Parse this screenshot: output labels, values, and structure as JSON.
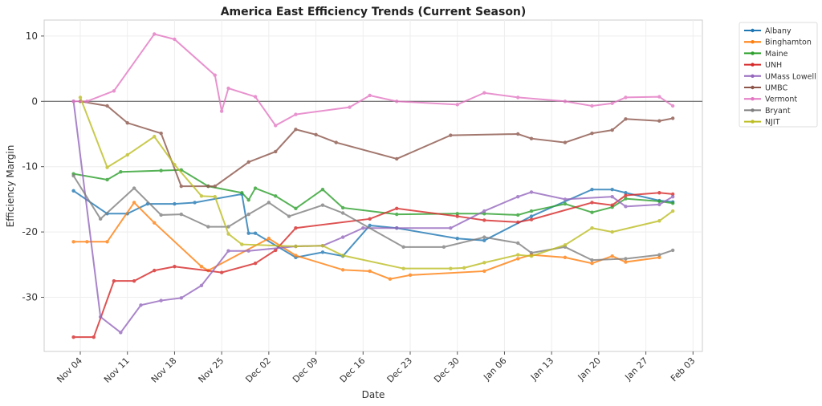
{
  "chart_data": {
    "type": "line",
    "title": "America East Efficiency Trends (Current Season)",
    "xlabel": "Date",
    "ylabel": "Efficiency Margin",
    "xlim": [
      "Nov 02",
      "Feb 03"
    ],
    "ylim": [
      -38.3,
      12.4
    ],
    "x_ticks": [
      "Nov 04",
      "Nov 11",
      "Nov 18",
      "Nov 25",
      "Dec 02",
      "Dec 09",
      "Dec 16",
      "Dec 23",
      "Dec 30",
      "Jan 06",
      "Jan 13",
      "Jan 20",
      "Jan 27",
      "Feb 03"
    ],
    "y_ticks": [
      10,
      0,
      -10,
      -20,
      -30
    ],
    "grid": true,
    "reference_line": 0,
    "legend_placement": "outside-right-top",
    "series": [
      {
        "name": "Albany",
        "color": "#1f77b4",
        "points": [
          [
            "Nov 03",
            -13.7
          ],
          [
            "Nov 08",
            -17.2
          ],
          [
            "Nov 11",
            -17.2
          ],
          [
            "Nov 14",
            -15.7
          ],
          [
            "Nov 18",
            -15.7
          ],
          [
            "Nov 21",
            -15.5
          ],
          [
            "Nov 28",
            -14.2
          ],
          [
            "Nov 29",
            -20.2
          ],
          [
            "Nov 30",
            -20.2
          ],
          [
            "Dec 06",
            -23.9
          ],
          [
            "Dec 10",
            -23.1
          ],
          [
            "Dec 13",
            -23.7
          ],
          [
            "Dec 17",
            -19.0
          ],
          [
            "Dec 21",
            -19.4
          ],
          [
            "Dec 30",
            -21.0
          ],
          [
            "Jan 03",
            -21.3
          ],
          [
            "Jan 10",
            -17.6
          ],
          [
            "Jan 19",
            -13.5
          ],
          [
            "Jan 22",
            -13.5
          ],
          [
            "Jan 24",
            -14.0
          ],
          [
            "Jan 29",
            -15.2
          ],
          [
            "Jan 31",
            -15.4
          ]
        ]
      },
      {
        "name": "Binghamton",
        "color": "#ff7f0e",
        "points": [
          [
            "Nov 03",
            -21.5
          ],
          [
            "Nov 05",
            -21.5
          ],
          [
            "Nov 08",
            -21.5
          ],
          [
            "Nov 12",
            -15.5
          ],
          [
            "Nov 15",
            -18.6
          ],
          [
            "Nov 22",
            -25.3
          ],
          [
            "Nov 23",
            -25.9
          ],
          [
            "Dec 02",
            -21.0
          ],
          [
            "Dec 06",
            -23.6
          ],
          [
            "Dec 13",
            -25.8
          ],
          [
            "Dec 17",
            -26.0
          ],
          [
            "Dec 20",
            -27.2
          ],
          [
            "Dec 23",
            -26.6
          ],
          [
            "Jan 03",
            -26.0
          ],
          [
            "Jan 08",
            -24.1
          ],
          [
            "Jan 10",
            -23.5
          ],
          [
            "Jan 15",
            -23.9
          ],
          [
            "Jan 19",
            -24.8
          ],
          [
            "Jan 22",
            -23.7
          ],
          [
            "Jan 24",
            -24.6
          ],
          [
            "Jan 29",
            -23.9
          ]
        ]
      },
      {
        "name": "Maine",
        "color": "#2ca02c",
        "points": [
          [
            "Nov 03",
            -11.1
          ],
          [
            "Nov 08",
            -12.0
          ],
          [
            "Nov 10",
            -10.8
          ],
          [
            "Nov 16",
            -10.6
          ],
          [
            "Nov 19",
            -10.5
          ],
          [
            "Nov 23",
            -13.0
          ],
          [
            "Nov 28",
            -14.0
          ],
          [
            "Nov 29",
            -15.1
          ],
          [
            "Nov 30",
            -13.3
          ],
          [
            "Dec 03",
            -14.5
          ],
          [
            "Dec 06",
            -16.4
          ],
          [
            "Dec 10",
            -13.5
          ],
          [
            "Dec 13",
            -16.3
          ],
          [
            "Dec 21",
            -17.3
          ],
          [
            "Dec 30",
            -17.2
          ],
          [
            "Jan 03",
            -17.2
          ],
          [
            "Jan 08",
            -17.4
          ],
          [
            "Jan 10",
            -16.8
          ],
          [
            "Jan 15",
            -15.7
          ],
          [
            "Jan 19",
            -17.0
          ],
          [
            "Jan 22",
            -16.2
          ],
          [
            "Jan 24",
            -14.9
          ],
          [
            "Jan 29",
            -15.3
          ],
          [
            "Jan 31",
            -15.6
          ]
        ]
      },
      {
        "name": "UNH",
        "color": "#d62728",
        "points": [
          [
            "Nov 03",
            -36.1
          ],
          [
            "Nov 06",
            -36.1
          ],
          [
            "Nov 09",
            -27.5
          ],
          [
            "Nov 12",
            -27.5
          ],
          [
            "Nov 15",
            -25.9
          ],
          [
            "Nov 18",
            -25.3
          ],
          [
            "Nov 25",
            -26.2
          ],
          [
            "Nov 30",
            -24.8
          ],
          [
            "Dec 03",
            -22.8
          ],
          [
            "Dec 06",
            -19.4
          ],
          [
            "Dec 17",
            -18.0
          ],
          [
            "Dec 21",
            -16.4
          ],
          [
            "Dec 30",
            -17.6
          ],
          [
            "Jan 03",
            -18.2
          ],
          [
            "Jan 08",
            -18.5
          ],
          [
            "Jan 10",
            -18.1
          ],
          [
            "Jan 19",
            -15.5
          ],
          [
            "Jan 22",
            -15.9
          ],
          [
            "Jan 24",
            -14.4
          ],
          [
            "Jan 29",
            -14.0
          ],
          [
            "Jan 31",
            -14.2
          ]
        ]
      },
      {
        "name": "UMass Lowell",
        "color": "#9467bd",
        "points": [
          [
            "Nov 03",
            0.0
          ],
          [
            "Nov 07",
            -33.0
          ],
          [
            "Nov 10",
            -35.4
          ],
          [
            "Nov 13",
            -31.2
          ],
          [
            "Nov 16",
            -30.5
          ],
          [
            "Nov 19",
            -30.1
          ],
          [
            "Nov 22",
            -28.2
          ],
          [
            "Nov 26",
            -22.9
          ],
          [
            "Nov 29",
            -22.9
          ],
          [
            "Dec 06",
            -22.2
          ],
          [
            "Dec 10",
            -22.1
          ],
          [
            "Dec 13",
            -20.8
          ],
          [
            "Dec 16",
            -19.4
          ],
          [
            "Dec 21",
            -19.4
          ],
          [
            "Dec 29",
            -19.4
          ],
          [
            "Jan 03",
            -16.8
          ],
          [
            "Jan 08",
            -14.6
          ],
          [
            "Jan 10",
            -13.9
          ],
          [
            "Jan 15",
            -15.0
          ],
          [
            "Jan 22",
            -14.6
          ],
          [
            "Jan 24",
            -16.1
          ],
          [
            "Jan 29",
            -15.8
          ],
          [
            "Jan 31",
            -14.6
          ]
        ]
      },
      {
        "name": "UMBC",
        "color": "#8c564b",
        "points": [
          [
            "Nov 04",
            0.0
          ],
          [
            "Nov 08",
            -0.7
          ],
          [
            "Nov 11",
            -3.3
          ],
          [
            "Nov 16",
            -4.9
          ],
          [
            "Nov 19",
            -13.0
          ],
          [
            "Nov 23",
            -13.0
          ],
          [
            "Nov 24",
            -13.0
          ],
          [
            "Nov 29",
            -9.3
          ],
          [
            "Dec 03",
            -7.7
          ],
          [
            "Dec 06",
            -4.3
          ],
          [
            "Dec 09",
            -5.1
          ],
          [
            "Dec 12",
            -6.3
          ],
          [
            "Dec 21",
            -8.8
          ],
          [
            "Dec 29",
            -5.2
          ],
          [
            "Jan 08",
            -5.0
          ],
          [
            "Jan 10",
            -5.7
          ],
          [
            "Jan 15",
            -6.3
          ],
          [
            "Jan 19",
            -4.9
          ],
          [
            "Jan 22",
            -4.4
          ],
          [
            "Jan 24",
            -2.7
          ],
          [
            "Jan 29",
            -3.0
          ],
          [
            "Jan 31",
            -2.6
          ]
        ]
      },
      {
        "name": "Vermont",
        "color": "#e377c2",
        "points": [
          [
            "Nov 03",
            0.0
          ],
          [
            "Nov 05",
            0.0
          ],
          [
            "Nov 09",
            1.6
          ],
          [
            "Nov 15",
            10.3
          ],
          [
            "Nov 18",
            9.5
          ],
          [
            "Nov 24",
            4.0
          ],
          [
            "Nov 25",
            -1.5
          ],
          [
            "Nov 26",
            2.0
          ],
          [
            "Nov 30",
            0.7
          ],
          [
            "Dec 03",
            -3.7
          ],
          [
            "Dec 06",
            -2.0
          ],
          [
            "Dec 14",
            -0.9
          ],
          [
            "Dec 17",
            0.9
          ],
          [
            "Dec 21",
            0.0
          ],
          [
            "Dec 30",
            -0.5
          ],
          [
            "Jan 03",
            1.3
          ],
          [
            "Jan 08",
            0.6
          ],
          [
            "Jan 15",
            0.0
          ],
          [
            "Jan 19",
            -0.7
          ],
          [
            "Jan 22",
            -0.3
          ],
          [
            "Jan 24",
            0.6
          ],
          [
            "Jan 29",
            0.7
          ],
          [
            "Jan 31",
            -0.7
          ]
        ]
      },
      {
        "name": "Bryant",
        "color": "#7f7f7f",
        "points": [
          [
            "Nov 03",
            -11.4
          ],
          [
            "Nov 07",
            -18.0
          ],
          [
            "Nov 12",
            -13.3
          ],
          [
            "Nov 16",
            -17.4
          ],
          [
            "Nov 19",
            -17.3
          ],
          [
            "Nov 23",
            -19.2
          ],
          [
            "Nov 26",
            -19.2
          ],
          [
            "Nov 29",
            -17.3
          ],
          [
            "Dec 02",
            -15.5
          ],
          [
            "Dec 05",
            -17.6
          ],
          [
            "Dec 10",
            -15.9
          ],
          [
            "Dec 13",
            -17.1
          ],
          [
            "Dec 22",
            -22.3
          ],
          [
            "Dec 28",
            -22.3
          ],
          [
            "Jan 03",
            -20.8
          ],
          [
            "Jan 08",
            -21.7
          ],
          [
            "Jan 10",
            -23.2
          ],
          [
            "Jan 15",
            -22.3
          ],
          [
            "Jan 19",
            -24.3
          ],
          [
            "Jan 24",
            -24.1
          ],
          [
            "Jan 29",
            -23.5
          ],
          [
            "Jan 31",
            -22.8
          ]
        ]
      },
      {
        "name": "NJIT",
        "color": "#bcbd22",
        "points": [
          [
            "Nov 04",
            0.6
          ],
          [
            "Nov 08",
            -10.1
          ],
          [
            "Nov 11",
            -8.2
          ],
          [
            "Nov 15",
            -5.4
          ],
          [
            "Nov 18",
            -9.7
          ],
          [
            "Nov 22",
            -14.5
          ],
          [
            "Nov 24",
            -14.6
          ],
          [
            "Nov 26",
            -20.3
          ],
          [
            "Nov 28",
            -21.9
          ],
          [
            "Dec 06",
            -22.2
          ],
          [
            "Dec 10",
            -22.1
          ],
          [
            "Dec 13",
            -23.6
          ],
          [
            "Dec 22",
            -25.6
          ],
          [
            "Dec 29",
            -25.6
          ],
          [
            "Dec 31",
            -25.5
          ],
          [
            "Jan 03",
            -24.7
          ],
          [
            "Jan 08",
            -23.5
          ],
          [
            "Jan 10",
            -23.7
          ],
          [
            "Jan 15",
            -22.0
          ],
          [
            "Jan 19",
            -19.4
          ],
          [
            "Jan 22",
            -20.0
          ],
          [
            "Jan 29",
            -18.3
          ],
          [
            "Jan 31",
            -16.8
          ]
        ]
      }
    ]
  }
}
